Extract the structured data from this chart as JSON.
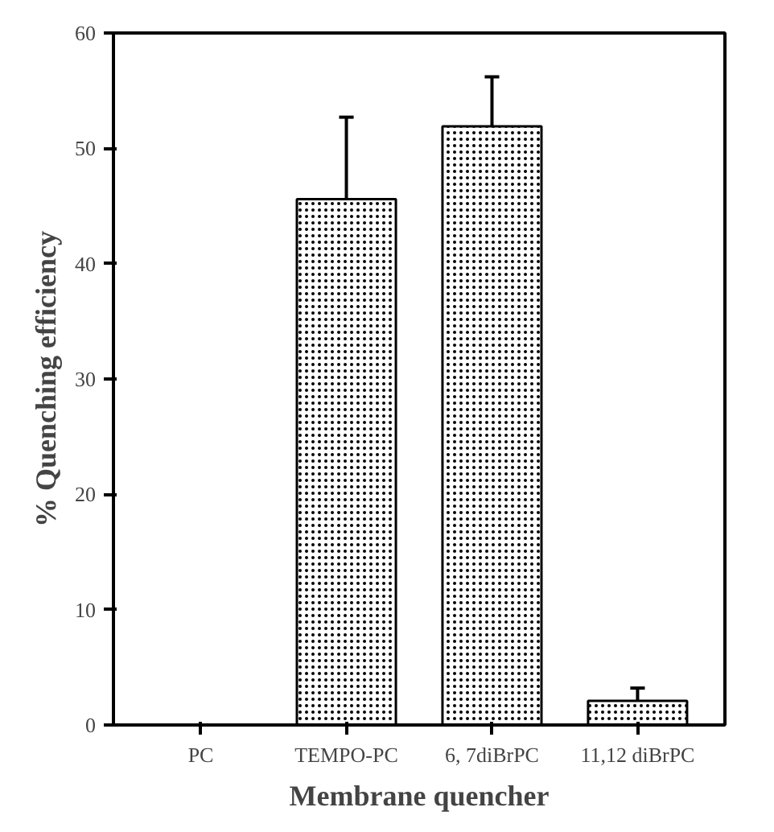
{
  "chart_data": {
    "type": "bar",
    "xlabel": "Membrane quencher",
    "ylabel": "% Quenching efficiency",
    "categories": [
      "PC",
      "TEMPO-PC",
      "6, 7diBrPC",
      "11,12 diBrPC"
    ],
    "values": [
      null,
      45.6,
      51.9,
      2.1
    ],
    "errors": [
      null,
      [
        45.6,
        52.7
      ],
      [
        51.9,
        56.2
      ],
      [
        2.1,
        3.2
      ]
    ],
    "color": "#ffffff",
    "ylim": [
      0,
      60
    ],
    "yticks": [
      0,
      10,
      20,
      30,
      40,
      50,
      60
    ],
    "grid": false
  }
}
